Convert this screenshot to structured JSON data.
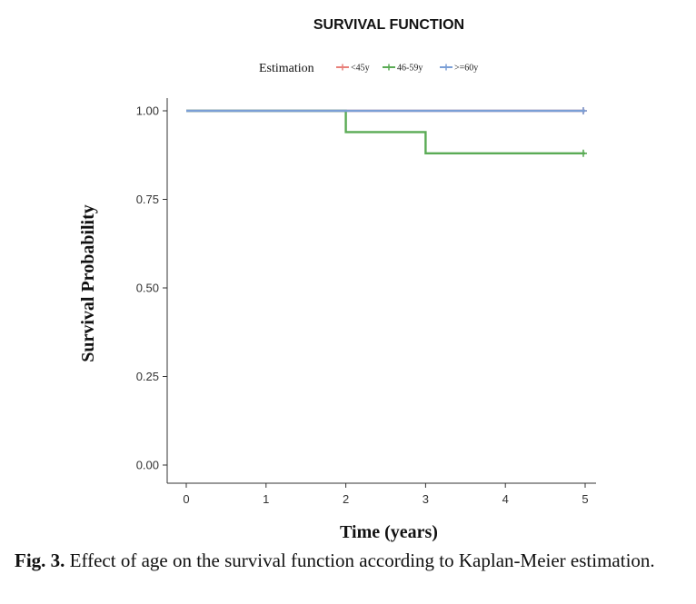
{
  "chart_data": {
    "type": "line",
    "step": true,
    "title": "SURVIVAL FUNCTION",
    "xlabel": "Time (years)",
    "ylabel": "Survival Probability",
    "xlim": [
      0,
      5
    ],
    "ylim": [
      0,
      1
    ],
    "x_ticks": [
      "0",
      "1",
      "2",
      "3",
      "4",
      "5"
    ],
    "y_ticks": [
      "0.00",
      "0.25",
      "0.50",
      "0.75",
      "1.00"
    ],
    "grid": false,
    "legend": {
      "title": "Estimation",
      "position": "top"
    },
    "series": [
      {
        "name": "<45y",
        "color": "#e8807a",
        "x": [
          0,
          5
        ],
        "y": [
          1.0,
          1.0
        ],
        "censor_x": [
          5
        ],
        "censor_y": [
          1.0
        ]
      },
      {
        "name": "46-59y",
        "color": "#5aab55",
        "x": [
          0,
          2,
          2,
          3,
          3,
          5
        ],
        "y": [
          1.0,
          1.0,
          0.94,
          0.94,
          0.88,
          0.88
        ],
        "censor_x": [
          5
        ],
        "censor_y": [
          0.88
        ]
      },
      {
        "name": ">=60y",
        "color": "#7b9fd6",
        "x": [
          0,
          5
        ],
        "y": [
          1.0,
          1.0
        ],
        "censor_x": [
          5
        ],
        "censor_y": [
          1.0
        ]
      }
    ]
  },
  "caption": {
    "label": "Fig. 3.",
    "text": "Effect of age on the survival function according to Kaplan-Meier estimation."
  }
}
